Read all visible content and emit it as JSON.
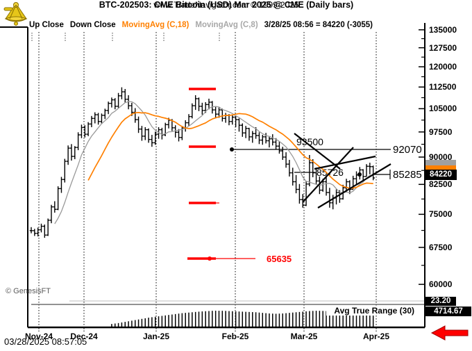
{
  "header": {
    "title": "BTC-202503:  CME Bitcoin (USD) Mar 2025 @ CME  (Daily bars)",
    "subtitle": "www.TradeNavigator.com © 1999-2025"
  },
  "legend": {
    "items": [
      {
        "label": "Up Close",
        "color": "#000000"
      },
      {
        "label": "Down Close",
        "color": "#000000"
      },
      {
        "label": "MovingAvg (C,18)",
        "color": "#FF8000"
      },
      {
        "label": "MovingAvg (C,8)",
        "color": "#A8A8A8"
      },
      {
        "label": "3/28/25 08:56 = 84220 (-3055)",
        "color": "#000000"
      }
    ]
  },
  "price_axis": {
    "badges": {
      "last_price": "84220",
      "last_price_bg": "#000000",
      "ma18_badge_bg": "#FF8000",
      "ma8_badge_bg": "#A0A0A0",
      "indicator1": "23.20",
      "indicator2": "4714.67"
    }
  },
  "time_axis": {
    "months": [
      "Nov-24",
      "Dec-24",
      "Jan-25",
      "Feb-25",
      "Mar-25",
      "Apr-25"
    ]
  },
  "annotations": {
    "level1": {
      "text": "92070"
    },
    "level2": {
      "text": "85285"
    },
    "level3": {
      "text": "93500"
    },
    "level4": {
      "text": "85726"
    },
    "level5": {
      "text": "65635",
      "color": "#FF0000"
    }
  },
  "atr": {
    "label": "Avg True Range (30)",
    "last": "4714.67"
  },
  "footer": {
    "copyright": "© GenesisFT",
    "timestamp": "03/28/2025 08:57:05"
  },
  "colors": {
    "up_down_bars": "#000000",
    "ma18": "#FF8000",
    "ma8": "#999999",
    "red_levels": "#FF0000",
    "grid": "#000000"
  },
  "chart_data": {
    "type": "bar",
    "subtype": "ohlc-daily",
    "symbol": "BTC-202503",
    "scale": "log",
    "title": "CME Bitcoin (USD) Mar 2025 @ CME (Daily bars)",
    "y_axis_ticks": [
      135000,
      127500,
      120000,
      112500,
      105000,
      97500,
      90000,
      82500,
      75000,
      67500,
      60000
    ],
    "x_axis_months": [
      "Nov-24",
      "Dec-24",
      "Jan-25",
      "Feb-25",
      "Mar-25",
      "Apr-25"
    ],
    "last": {
      "time": "3/28/25 08:56",
      "price": 84220,
      "change": -3055
    },
    "levels": [
      {
        "value": 92070,
        "style": "horizontal-line-with-dot"
      },
      {
        "value": 85285,
        "style": "right-label"
      },
      {
        "value": 93500,
        "style": "text"
      },
      {
        "value": 85726,
        "style": "text-with-dot"
      },
      {
        "value": 65635,
        "style": "red-line-with-dot"
      },
      {
        "value": 112800,
        "style": "red-segment"
      },
      {
        "value": 92900,
        "style": "red-segment"
      },
      {
        "value": 77800,
        "style": "red-segment"
      }
    ],
    "overlays": [
      {
        "name": "MovingAvg (C,18)",
        "period": 18,
        "color": "#FF8000"
      },
      {
        "name": "MovingAvg (C,8)",
        "period": 8,
        "color": "#999999"
      }
    ],
    "bars_format": [
      "high",
      "low",
      "close"
    ],
    "bars": [
      [
        72000,
        70600,
        71200
      ],
      [
        71600,
        70000,
        70600
      ],
      [
        71900,
        69900,
        71400
      ],
      [
        72800,
        70800,
        72200
      ],
      [
        72600,
        69600,
        70200
      ],
      [
        74000,
        70000,
        73600
      ],
      [
        77300,
        72900,
        76800
      ],
      [
        78200,
        75400,
        76200
      ],
      [
        82000,
        76000,
        81400
      ],
      [
        84500,
        80300,
        83800
      ],
      [
        89500,
        83000,
        88800
      ],
      [
        93400,
        87800,
        92600
      ],
      [
        93800,
        89000,
        90200
      ],
      [
        93200,
        89400,
        92800
      ],
      [
        97400,
        92000,
        96600
      ],
      [
        99800,
        95600,
        98900
      ],
      [
        99600,
        95800,
        96800
      ],
      [
        100600,
        96200,
        100000
      ],
      [
        102600,
        99000,
        101800
      ],
      [
        103800,
        100200,
        103000
      ],
      [
        103600,
        99800,
        100800
      ],
      [
        103400,
        100000,
        102800
      ],
      [
        105000,
        101600,
        104400
      ],
      [
        107400,
        103200,
        106800
      ],
      [
        108800,
        105400,
        108000
      ],
      [
        108600,
        104800,
        105800
      ],
      [
        110400,
        105200,
        109400
      ],
      [
        112400,
        108200,
        110800
      ],
      [
        111800,
        107000,
        108200
      ],
      [
        109600,
        104800,
        106000
      ],
      [
        107000,
        102600,
        103800
      ],
      [
        105200,
        100400,
        101400
      ],
      [
        102400,
        97200,
        98400
      ],
      [
        99400,
        94800,
        96200
      ],
      [
        99000,
        95000,
        98200
      ],
      [
        98600,
        94200,
        95200
      ],
      [
        96600,
        93000,
        94200
      ],
      [
        97600,
        93600,
        96800
      ],
      [
        99000,
        95400,
        98200
      ],
      [
        98800,
        95200,
        96600
      ],
      [
        100400,
        96200,
        99800
      ],
      [
        102000,
        98600,
        101200
      ],
      [
        101600,
        97800,
        98800
      ],
      [
        99600,
        95800,
        97400
      ],
      [
        98400,
        94600,
        95800
      ],
      [
        99400,
        95000,
        98800
      ],
      [
        101200,
        97600,
        100400
      ],
      [
        103200,
        99400,
        102400
      ],
      [
        106800,
        101800,
        106000
      ],
      [
        109600,
        104600,
        108400
      ],
      [
        108800,
        104200,
        105800
      ],
      [
        107000,
        103000,
        104400
      ],
      [
        107200,
        103600,
        106400
      ],
      [
        108400,
        104800,
        107200
      ],
      [
        107600,
        103400,
        104600
      ],
      [
        105600,
        101800,
        103200
      ],
      [
        105400,
        102000,
        104600
      ],
      [
        105000,
        100800,
        101800
      ],
      [
        103600,
        100400,
        102800
      ],
      [
        103200,
        99600,
        100800
      ],
      [
        102800,
        99800,
        102200
      ],
      [
        102600,
        99000,
        101400
      ],
      [
        101800,
        97600,
        99600
      ],
      [
        100200,
        96000,
        97200
      ],
      [
        99400,
        95600,
        98600
      ],
      [
        98800,
        94800,
        96000
      ],
      [
        97800,
        94200,
        97000
      ],
      [
        99000,
        95400,
        96400
      ],
      [
        97400,
        93800,
        95000
      ],
      [
        96600,
        93600,
        96000
      ],
      [
        97200,
        94000,
        94800
      ],
      [
        96000,
        92800,
        95400
      ],
      [
        96800,
        93400,
        94400
      ],
      [
        95600,
        92200,
        93200
      ],
      [
        94600,
        91000,
        91800
      ],
      [
        93000,
        89200,
        90000
      ],
      [
        91400,
        87000,
        88000
      ],
      [
        89200,
        84600,
        85600
      ],
      [
        87000,
        82200,
        83200
      ],
      [
        85000,
        80200,
        81200
      ],
      [
        82600,
        77600,
        78600
      ],
      [
        80000,
        76600,
        77200
      ],
      [
        83400,
        77000,
        82600
      ],
      [
        90600,
        82000,
        88400
      ],
      [
        89400,
        84400,
        85600
      ],
      [
        87000,
        82600,
        83400
      ],
      [
        84600,
        80000,
        81000
      ],
      [
        84000,
        80600,
        83200
      ],
      [
        84400,
        79600,
        80400
      ],
      [
        81600,
        76600,
        77800
      ],
      [
        79800,
        76200,
        79000
      ],
      [
        81200,
        77400,
        80400
      ],
      [
        81000,
        77800,
        78800
      ],
      [
        82400,
        78600,
        81600
      ],
      [
        84000,
        80400,
        83200
      ],
      [
        83600,
        80000,
        81200
      ],
      [
        84800,
        81200,
        84000
      ],
      [
        86000,
        82600,
        85000
      ],
      [
        87200,
        83800,
        86400
      ],
      [
        86600,
        83200,
        84600
      ],
      [
        88000,
        84600,
        87400
      ],
      [
        88400,
        85200,
        87300
      ],
      [
        87600,
        83600,
        84220
      ]
    ],
    "atr_panel": {
      "label": "Avg True Range (30)",
      "period": 30,
      "last": 4714.67,
      "start_bar_index": 24,
      "values": [
        900,
        1050,
        1200,
        1400,
        1600,
        1800,
        2000,
        2200,
        2400,
        2600,
        2800,
        3000,
        3150,
        3300,
        3450,
        3600,
        3750,
        3900,
        4050,
        4200,
        4350,
        4500,
        4600,
        4700,
        4800,
        4900,
        5000,
        5080,
        5150,
        5220,
        5280,
        5320,
        5300,
        5280,
        5250,
        5200,
        5150,
        5100,
        5050,
        5000,
        4950,
        4900,
        4850,
        4800,
        4700,
        4600,
        4500,
        4400,
        4350,
        4300,
        4350,
        4400,
        4500,
        4600,
        4700,
        4800,
        4900,
        5000,
        5100,
        5200,
        5250,
        5300,
        5280,
        5250,
        5200,
        5150,
        5100,
        5050,
        5000,
        4950,
        4900,
        4850,
        4800,
        4780,
        4760,
        4750,
        4730,
        4720,
        4714.67
      ]
    }
  }
}
